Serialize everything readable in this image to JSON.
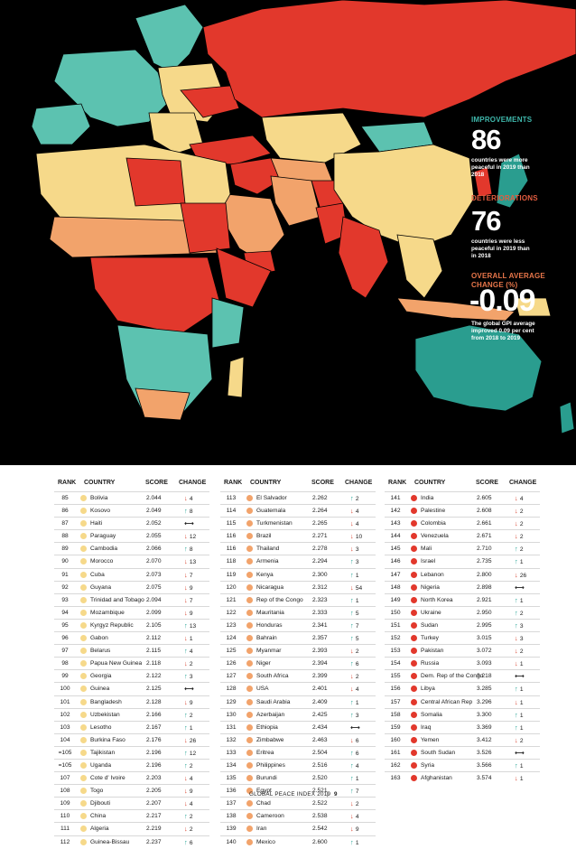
{
  "stats": {
    "improvements": {
      "label": "IMPROVEMENTS",
      "value": "86",
      "desc": "countries were more peaceful in 2019 than 2018"
    },
    "deteriorations": {
      "label": "DETERIORATIONS",
      "value": "76",
      "desc": "countries were less peaceful in 2019 than in 2018"
    },
    "average": {
      "label": "OVERALL AVERAGE CHANGE (%)",
      "value": "-0.09",
      "desc": "The global GPI average improved 0.09 per cent from 2018 to 2019"
    }
  },
  "colors": {
    "very_high": "#2a9d8f",
    "high": "#5cc2b0",
    "medium": "#f6d98a",
    "low": "#f2a36b",
    "very_low": "#e2382c",
    "up": "#2aa598",
    "down": "#d9442f"
  },
  "table": {
    "headers": {
      "rank": "RANK",
      "country": "COUNTRY",
      "score": "SCORE",
      "change": "CHANGE"
    },
    "columns": [
      [
        {
          "rank": "85",
          "country": "Bolivia",
          "score": "2.044",
          "dir": "down",
          "chg": "4",
          "c": "medium"
        },
        {
          "rank": "86",
          "country": "Kosovo",
          "score": "2.049",
          "dir": "up",
          "chg": "8",
          "c": "medium"
        },
        {
          "rank": "87",
          "country": "Haiti",
          "score": "2.052",
          "dir": "same",
          "chg": "",
          "c": "medium"
        },
        {
          "rank": "88",
          "country": "Paraguay",
          "score": "2.055",
          "dir": "down",
          "chg": "12",
          "c": "medium"
        },
        {
          "rank": "89",
          "country": "Cambodia",
          "score": "2.066",
          "dir": "up",
          "chg": "8",
          "c": "medium"
        },
        {
          "rank": "90",
          "country": "Morocco",
          "score": "2.070",
          "dir": "down",
          "chg": "13",
          "c": "medium"
        },
        {
          "rank": "91",
          "country": "Cuba",
          "score": "2.073",
          "dir": "down",
          "chg": "7",
          "c": "medium"
        },
        {
          "rank": "92",
          "country": "Guyana",
          "score": "2.075",
          "dir": "down",
          "chg": "9",
          "c": "medium"
        },
        {
          "rank": "93",
          "country": "Trinidad and Tobago",
          "score": "2.094",
          "dir": "down",
          "chg": "7",
          "c": "medium"
        },
        {
          "rank": "94",
          "country": "Mozambique",
          "score": "2.099",
          "dir": "down",
          "chg": "9",
          "c": "medium"
        },
        {
          "rank": "95",
          "country": "Kyrgyz Republic",
          "score": "2.105",
          "dir": "up",
          "chg": "13",
          "c": "medium"
        },
        {
          "rank": "96",
          "country": "Gabon",
          "score": "2.112",
          "dir": "down",
          "chg": "1",
          "c": "medium"
        },
        {
          "rank": "97",
          "country": "Belarus",
          "score": "2.115",
          "dir": "up",
          "chg": "4",
          "c": "medium"
        },
        {
          "rank": "98",
          "country": "Papua New Guinea",
          "score": "2.118",
          "dir": "down",
          "chg": "2",
          "c": "medium"
        },
        {
          "rank": "99",
          "country": "Georgia",
          "score": "2.122",
          "dir": "up",
          "chg": "3",
          "c": "medium"
        },
        {
          "rank": "100",
          "country": "Guinea",
          "score": "2.125",
          "dir": "same",
          "chg": "",
          "c": "medium"
        },
        {
          "rank": "101",
          "country": "Bangladesh",
          "score": "2.128",
          "dir": "down",
          "chg": "9",
          "c": "medium"
        },
        {
          "rank": "102",
          "country": "Uzbekistan",
          "score": "2.166",
          "dir": "up",
          "chg": "2",
          "c": "medium"
        },
        {
          "rank": "103",
          "country": "Lesotho",
          "score": "2.167",
          "dir": "up",
          "chg": "1",
          "c": "medium"
        },
        {
          "rank": "104",
          "country": "Burkina Faso",
          "score": "2.176",
          "dir": "down",
          "chg": "26",
          "c": "medium"
        },
        {
          "rank": "=105",
          "country": "Tajikistan",
          "score": "2.196",
          "dir": "up",
          "chg": "12",
          "c": "medium"
        },
        {
          "rank": "=105",
          "country": "Uganda",
          "score": "2.196",
          "dir": "up",
          "chg": "2",
          "c": "medium"
        },
        {
          "rank": "107",
          "country": "Cote d' Ivoire",
          "score": "2.203",
          "dir": "down",
          "chg": "4",
          "c": "medium"
        },
        {
          "rank": "108",
          "country": "Togo",
          "score": "2.205",
          "dir": "down",
          "chg": "9",
          "c": "medium"
        },
        {
          "rank": "109",
          "country": "Djibouti",
          "score": "2.207",
          "dir": "down",
          "chg": "4",
          "c": "medium"
        },
        {
          "rank": "110",
          "country": "China",
          "score": "2.217",
          "dir": "up",
          "chg": "2",
          "c": "medium"
        },
        {
          "rank": "111",
          "country": "Algeria",
          "score": "2.219",
          "dir": "down",
          "chg": "2",
          "c": "medium"
        },
        {
          "rank": "112",
          "country": "Guinea-Bissau",
          "score": "2.237",
          "dir": "up",
          "chg": "6",
          "c": "medium"
        }
      ],
      [
        {
          "rank": "113",
          "country": "El Salvador",
          "score": "2.262",
          "dir": "up",
          "chg": "2",
          "c": "low"
        },
        {
          "rank": "114",
          "country": "Guatemala",
          "score": "2.264",
          "dir": "down",
          "chg": "4",
          "c": "low"
        },
        {
          "rank": "115",
          "country": "Turkmenistan",
          "score": "2.265",
          "dir": "down",
          "chg": "4",
          "c": "low"
        },
        {
          "rank": "116",
          "country": "Brazil",
          "score": "2.271",
          "dir": "down",
          "chg": "10",
          "c": "low"
        },
        {
          "rank": "116",
          "country": "Thailand",
          "score": "2.278",
          "dir": "down",
          "chg": "3",
          "c": "low"
        },
        {
          "rank": "118",
          "country": "Armenia",
          "score": "2.294",
          "dir": "up",
          "chg": "3",
          "c": "low"
        },
        {
          "rank": "119",
          "country": "Kenya",
          "score": "2.300",
          "dir": "up",
          "chg": "1",
          "c": "low"
        },
        {
          "rank": "120",
          "country": "Nicaragua",
          "score": "2.312",
          "dir": "down",
          "chg": "54",
          "c": "low"
        },
        {
          "rank": "121",
          "country": "Rep of the Congo",
          "score": "2.323",
          "dir": "up",
          "chg": "1",
          "c": "low"
        },
        {
          "rank": "122",
          "country": "Mauritania",
          "score": "2.333",
          "dir": "up",
          "chg": "5",
          "c": "low"
        },
        {
          "rank": "123",
          "country": "Honduras",
          "score": "2.341",
          "dir": "up",
          "chg": "7",
          "c": "low"
        },
        {
          "rank": "124",
          "country": "Bahrain",
          "score": "2.357",
          "dir": "up",
          "chg": "5",
          "c": "low"
        },
        {
          "rank": "125",
          "country": "Myanmar",
          "score": "2.393",
          "dir": "down",
          "chg": "2",
          "c": "low"
        },
        {
          "rank": "126",
          "country": "Niger",
          "score": "2.394",
          "dir": "up",
          "chg": "6",
          "c": "low"
        },
        {
          "rank": "127",
          "country": "South Africa",
          "score": "2.399",
          "dir": "down",
          "chg": "2",
          "c": "low"
        },
        {
          "rank": "128",
          "country": "USA",
          "score": "2.401",
          "dir": "down",
          "chg": "4",
          "c": "low"
        },
        {
          "rank": "129",
          "country": "Saudi Arabia",
          "score": "2.409",
          "dir": "up",
          "chg": "1",
          "c": "low"
        },
        {
          "rank": "130",
          "country": "Azerbaijan",
          "score": "2.425",
          "dir": "up",
          "chg": "3",
          "c": "low"
        },
        {
          "rank": "131",
          "country": "Ethiopia",
          "score": "2.434",
          "dir": "same",
          "chg": "",
          "c": "low"
        },
        {
          "rank": "132",
          "country": "Zimbabwe",
          "score": "2.463",
          "dir": "down",
          "chg": "6",
          "c": "low"
        },
        {
          "rank": "133",
          "country": "Eritrea",
          "score": "2.504",
          "dir": "up",
          "chg": "6",
          "c": "low"
        },
        {
          "rank": "134",
          "country": "Philippines",
          "score": "2.516",
          "dir": "up",
          "chg": "4",
          "c": "low"
        },
        {
          "rank": "135",
          "country": "Burundi",
          "score": "2.520",
          "dir": "up",
          "chg": "1",
          "c": "low"
        },
        {
          "rank": "136",
          "country": "Egypt",
          "score": "2.521",
          "dir": "up",
          "chg": "7",
          "c": "low"
        },
        {
          "rank": "137",
          "country": "Chad",
          "score": "2.522",
          "dir": "down",
          "chg": "2",
          "c": "low"
        },
        {
          "rank": "138",
          "country": "Cameroon",
          "score": "2.538",
          "dir": "down",
          "chg": "4",
          "c": "low"
        },
        {
          "rank": "139",
          "country": "Iran",
          "score": "2.542",
          "dir": "down",
          "chg": "9",
          "c": "low"
        },
        {
          "rank": "140",
          "country": "Mexico",
          "score": "2.600",
          "dir": "up",
          "chg": "1",
          "c": "low"
        }
      ],
      [
        {
          "rank": "141",
          "country": "India",
          "score": "2.605",
          "dir": "down",
          "chg": "4",
          "c": "very_low"
        },
        {
          "rank": "142",
          "country": "Palestine",
          "score": "2.608",
          "dir": "down",
          "chg": "2",
          "c": "very_low"
        },
        {
          "rank": "143",
          "country": "Colombia",
          "score": "2.661",
          "dir": "down",
          "chg": "2",
          "c": "very_low"
        },
        {
          "rank": "144",
          "country": "Venezuela",
          "score": "2.671",
          "dir": "down",
          "chg": "2",
          "c": "very_low"
        },
        {
          "rank": "145",
          "country": "Mali",
          "score": "2.710",
          "dir": "up",
          "chg": "2",
          "c": "very_low"
        },
        {
          "rank": "146",
          "country": "Israel",
          "score": "2.735",
          "dir": "up",
          "chg": "1",
          "c": "very_low"
        },
        {
          "rank": "147",
          "country": "Lebanon",
          "score": "2.800",
          "dir": "down",
          "chg": "26",
          "c": "very_low"
        },
        {
          "rank": "148",
          "country": "Nigeria",
          "score": "2.898",
          "dir": "same",
          "chg": "",
          "c": "very_low"
        },
        {
          "rank": "149",
          "country": "North Korea",
          "score": "2.921",
          "dir": "up",
          "chg": "1",
          "c": "very_low"
        },
        {
          "rank": "150",
          "country": "Ukraine",
          "score": "2.950",
          "dir": "up",
          "chg": "2",
          "c": "very_low"
        },
        {
          "rank": "151",
          "country": "Sudan",
          "score": "2.995",
          "dir": "up",
          "chg": "3",
          "c": "very_low"
        },
        {
          "rank": "152",
          "country": "Turkey",
          "score": "3.015",
          "dir": "down",
          "chg": "3",
          "c": "very_low"
        },
        {
          "rank": "153",
          "country": "Pakistan",
          "score": "3.072",
          "dir": "down",
          "chg": "2",
          "c": "very_low"
        },
        {
          "rank": "154",
          "country": "Russia",
          "score": "3.093",
          "dir": "down",
          "chg": "1",
          "c": "very_low"
        },
        {
          "rank": "155",
          "country": "Dem. Rep of the Congo",
          "score": "3.218",
          "dir": "same",
          "chg": "",
          "c": "very_low"
        },
        {
          "rank": "156",
          "country": "Libya",
          "score": "3.285",
          "dir": "up",
          "chg": "1",
          "c": "very_low"
        },
        {
          "rank": "157",
          "country": "Central African Rep",
          "score": "3.296",
          "dir": "down",
          "chg": "1",
          "c": "very_low"
        },
        {
          "rank": "158",
          "country": "Somalia",
          "score": "3.300",
          "dir": "up",
          "chg": "1",
          "c": "very_low"
        },
        {
          "rank": "159",
          "country": "Iraq",
          "score": "3.369",
          "dir": "up",
          "chg": "1",
          "c": "very_low"
        },
        {
          "rank": "160",
          "country": "Yemen",
          "score": "3.412",
          "dir": "down",
          "chg": "2",
          "c": "very_low"
        },
        {
          "rank": "161",
          "country": "South Sudan",
          "score": "3.526",
          "dir": "same",
          "chg": "",
          "c": "very_low"
        },
        {
          "rank": "162",
          "country": "Syria",
          "score": "3.566",
          "dir": "up",
          "chg": "1",
          "c": "very_low"
        },
        {
          "rank": "163",
          "country": "Afghanistan",
          "score": "3.574",
          "dir": "down",
          "chg": "1",
          "c": "very_low"
        }
      ]
    ]
  },
  "footer": {
    "title": "GLOBAL PEACE INDEX 2019",
    "sep": "|",
    "page": "9"
  }
}
